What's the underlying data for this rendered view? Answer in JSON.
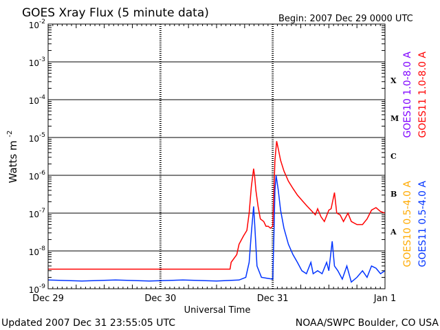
{
  "chart_data": {
    "type": "line",
    "title": "GOES Xray Flux (5 minute data)",
    "begin_label": "Begin:  2007 Dec 29 0000 UTC",
    "xlabel": "Universal Time",
    "ylabel": "Watts m",
    "ylabel_exponent": "-2",
    "y_scale": "log",
    "ylim": [
      1e-09,
      0.01
    ],
    "y_ticks": [
      {
        "mantissa": "10",
        "exp": "-9"
      },
      {
        "mantissa": "10",
        "exp": "-8"
      },
      {
        "mantissa": "10",
        "exp": "-7"
      },
      {
        "mantissa": "10",
        "exp": "-6"
      },
      {
        "mantissa": "10",
        "exp": "-5"
      },
      {
        "mantissa": "10",
        "exp": "-4"
      },
      {
        "mantissa": "10",
        "exp": "-3"
      },
      {
        "mantissa": "10",
        "exp": "-2"
      }
    ],
    "x_ticks": [
      "Dec 29",
      "Dec 30",
      "Dec 31",
      "Jan 1"
    ],
    "x_unit": "days from 2007 Dec 29 0000 UTC",
    "xlim": [
      0,
      3
    ],
    "flare_classes": [
      {
        "label": "X",
        "flux": 0.00032
      },
      {
        "label": "M",
        "flux": 3.2e-05
      },
      {
        "label": "C",
        "flux": 3.2e-06
      },
      {
        "label": "B",
        "flux": 3.2e-07
      },
      {
        "label": "A",
        "flux": 3.2e-08
      }
    ],
    "grid": true,
    "series": [
      {
        "name": "GOES11 1.0-8.0 A",
        "color": "#ff0000",
        "points": [
          [
            0.0,
            3.3e-09
          ],
          [
            0.6,
            3.3e-09
          ],
          [
            1.2,
            3.3e-09
          ],
          [
            1.62,
            3.3e-09
          ],
          [
            1.63,
            5e-09
          ],
          [
            1.68,
            8e-09
          ],
          [
            1.7,
            1.5e-08
          ],
          [
            1.74,
            2.5e-08
          ],
          [
            1.77,
            3.5e-08
          ],
          [
            1.79,
            1e-07
          ],
          [
            1.81,
            5e-07
          ],
          [
            1.83,
            1.5e-06
          ],
          [
            1.84,
            9e-07
          ],
          [
            1.85,
            4e-07
          ],
          [
            1.87,
            1.5e-07
          ],
          [
            1.89,
            7e-08
          ],
          [
            1.92,
            6e-08
          ],
          [
            1.94,
            4.5e-08
          ],
          [
            1.96,
            4.5e-08
          ],
          [
            1.98,
            4e-08
          ],
          [
            2.0,
            4.5e-08
          ],
          [
            2.01,
            3e-07
          ],
          [
            2.02,
            2.5e-06
          ],
          [
            2.035,
            8e-06
          ],
          [
            2.05,
            5e-06
          ],
          [
            2.07,
            2.5e-06
          ],
          [
            2.1,
            1.3e-06
          ],
          [
            2.14,
            7e-07
          ],
          [
            2.18,
            4.5e-07
          ],
          [
            2.22,
            3e-07
          ],
          [
            2.26,
            2.2e-07
          ],
          [
            2.3,
            1.6e-07
          ],
          [
            2.34,
            1.2e-07
          ],
          [
            2.38,
            9e-08
          ],
          [
            2.4,
            1.3e-07
          ],
          [
            2.43,
            8e-08
          ],
          [
            2.46,
            6e-08
          ],
          [
            2.5,
            1.2e-07
          ],
          [
            2.52,
            1.3e-07
          ],
          [
            2.55,
            3.5e-07
          ],
          [
            2.57,
            1e-07
          ],
          [
            2.6,
            9e-08
          ],
          [
            2.63,
            6e-08
          ],
          [
            2.67,
            1e-07
          ],
          [
            2.7,
            6e-08
          ],
          [
            2.75,
            5e-08
          ],
          [
            2.8,
            5e-08
          ],
          [
            2.84,
            7e-08
          ],
          [
            2.88,
            1.2e-07
          ],
          [
            2.92,
            1.4e-07
          ],
          [
            2.96,
            1.1e-07
          ],
          [
            3.0,
            1e-07
          ]
        ]
      },
      {
        "name": "GOES11 0.5-4.0 A",
        "color": "#0033ff",
        "points": [
          [
            0.0,
            1.7e-09
          ],
          [
            0.3,
            1.6e-09
          ],
          [
            0.6,
            1.7e-09
          ],
          [
            0.9,
            1.6e-09
          ],
          [
            1.2,
            1.7e-09
          ],
          [
            1.5,
            1.6e-09
          ],
          [
            1.7,
            1.7e-09
          ],
          [
            1.76,
            2e-09
          ],
          [
            1.79,
            5e-09
          ],
          [
            1.81,
            3e-08
          ],
          [
            1.83,
            1.5e-07
          ],
          [
            1.84,
            5e-08
          ],
          [
            1.86,
            4e-09
          ],
          [
            1.9,
            2e-09
          ],
          [
            1.95,
            1.9e-09
          ],
          [
            2.0,
            1.8e-09
          ],
          [
            2.01,
            2e-08
          ],
          [
            2.02,
            4e-07
          ],
          [
            2.03,
            1e-06
          ],
          [
            2.05,
            4e-07
          ],
          [
            2.07,
            1.2e-07
          ],
          [
            2.1,
            4e-08
          ],
          [
            2.14,
            1.5e-08
          ],
          [
            2.18,
            8e-09
          ],
          [
            2.22,
            5e-09
          ],
          [
            2.26,
            3e-09
          ],
          [
            2.3,
            2.5e-09
          ],
          [
            2.34,
            5e-09
          ],
          [
            2.36,
            2.5e-09
          ],
          [
            2.4,
            3e-09
          ],
          [
            2.44,
            2.5e-09
          ],
          [
            2.48,
            5e-09
          ],
          [
            2.5,
            3e-09
          ],
          [
            2.53,
            1.8e-08
          ],
          [
            2.55,
            4e-09
          ],
          [
            2.58,
            3e-09
          ],
          [
            2.62,
            1.8e-09
          ],
          [
            2.66,
            4e-09
          ],
          [
            2.7,
            1.5e-09
          ],
          [
            2.75,
            2e-09
          ],
          [
            2.8,
            3e-09
          ],
          [
            2.84,
            2e-09
          ],
          [
            2.88,
            4e-09
          ],
          [
            2.92,
            3.5e-09
          ],
          [
            2.96,
            2.5e-09
          ],
          [
            3.0,
            3e-09
          ]
        ]
      }
    ],
    "legend_right": [
      {
        "label": "GOES10 1.0-8.0 A",
        "color": "#7f00ff",
        "position": "upper"
      },
      {
        "label": "GOES11 1.0-8.0 A",
        "color": "#ff0000",
        "position": "upper"
      },
      {
        "label": "GOES10 0.5-4.0 A",
        "color": "#ffaa00",
        "position": "lower"
      },
      {
        "label": "GOES11 0.5-4.0 A",
        "color": "#0033ff",
        "position": "lower"
      }
    ]
  },
  "footer": {
    "updated": "Updated 2007 Dec 31 23:55:05 UTC",
    "credit": "NOAA/SWPC Boulder, CO USA"
  }
}
